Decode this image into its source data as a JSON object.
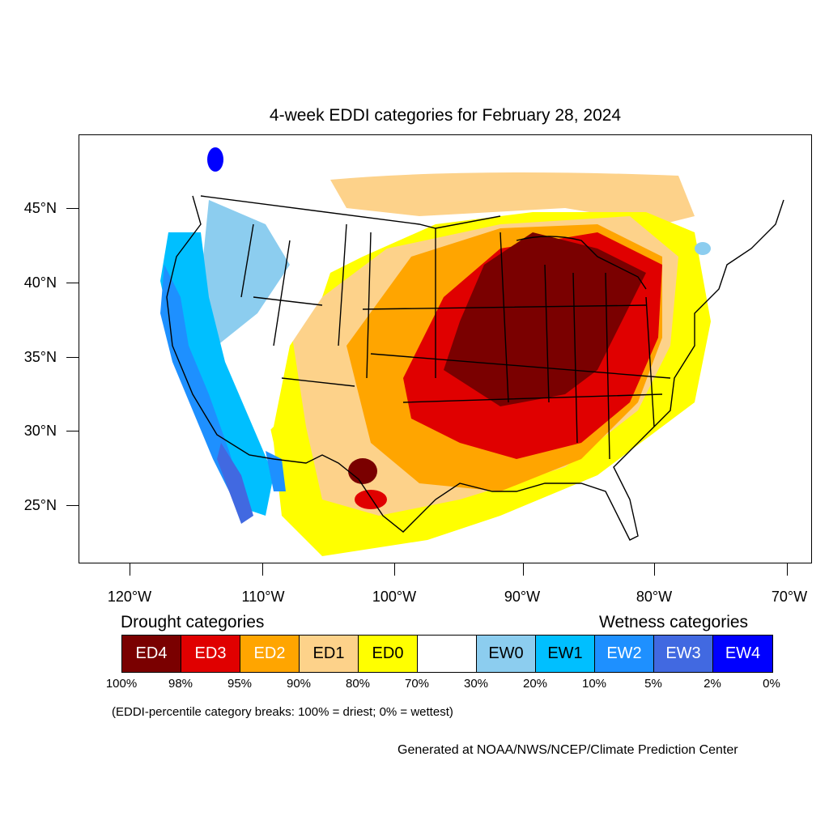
{
  "title": "4-week EDDI categories for February 28, 2024",
  "map": {
    "lat_labels": [
      "45°N",
      "40°N",
      "35°N",
      "30°N",
      "25°N"
    ],
    "lon_labels": [
      "120°W",
      "110°W",
      "100°W",
      "90°W",
      "80°W",
      "70°W"
    ]
  },
  "legend": {
    "drought_heading": "Drought categories",
    "wetness_heading": "Wetness categories",
    "categories": [
      {
        "label": "ED4",
        "color": "#7a0000",
        "text_color": "#ffffff"
      },
      {
        "label": "ED3",
        "color": "#e00000",
        "text_color": "#ffffff"
      },
      {
        "label": "ED2",
        "color": "#ffa500",
        "text_color": "#ffffff"
      },
      {
        "label": "ED1",
        "color": "#fdd28a",
        "text_color": "#000000"
      },
      {
        "label": "ED0",
        "color": "#ffff00",
        "text_color": "#000000"
      },
      {
        "label": "",
        "color": "#ffffff",
        "text_color": "#000000"
      },
      {
        "label": "EW0",
        "color": "#8ccdef",
        "text_color": "#000000"
      },
      {
        "label": "EW1",
        "color": "#00bfff",
        "text_color": "#000000"
      },
      {
        "label": "EW2",
        "color": "#1e90ff",
        "text_color": "#ffffff"
      },
      {
        "label": "EW3",
        "color": "#4169e1",
        "text_color": "#ffffff"
      },
      {
        "label": "EW4",
        "color": "#0000ff",
        "text_color": "#ffffff"
      }
    ],
    "breaks": [
      "100%",
      "98%",
      "95%",
      "90%",
      "80%",
      "70%",
      "30%",
      "20%",
      "10%",
      "5%",
      "2%",
      "0%"
    ]
  },
  "note": "(EDDI-percentile category breaks: 100% = driest; 0% = wettest)",
  "credit": "Generated at NOAA/NWS/NCEP/Climate Prediction Center"
}
